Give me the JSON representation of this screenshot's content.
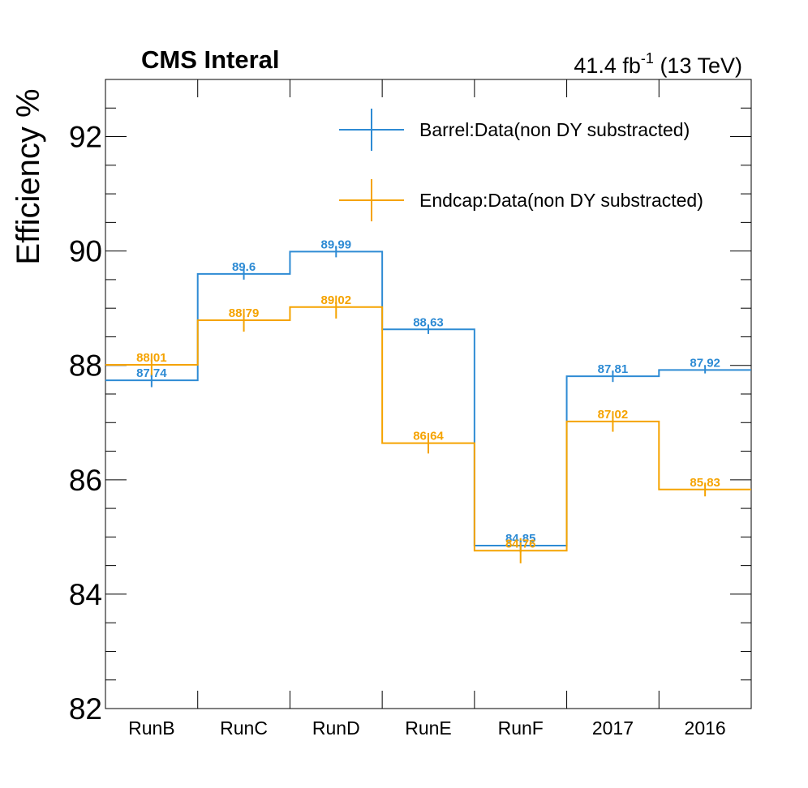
{
  "header": {
    "experiment": "CMS Interal",
    "lumi_value": "41.4 fb",
    "lumi_exp": "-1",
    "energy": " (13 TeV)"
  },
  "chart_data": {
    "type": "line",
    "step": true,
    "ylabel": "Efficiency %",
    "categories": [
      "RunB",
      "RunC",
      "RunD",
      "RunE",
      "RunF",
      "2017",
      "2016"
    ],
    "ylim": [
      82,
      93
    ],
    "yticks": [
      82,
      84,
      86,
      88,
      90,
      92
    ],
    "series": [
      {
        "name": "Barrel:Data(non DY substracted)",
        "color": "#2e8bd4",
        "values": [
          87.74,
          89.6,
          89.99,
          88.63,
          84.85,
          87.81,
          87.92
        ],
        "labels": [
          "87.74",
          "89.6",
          "89.99",
          "88.63",
          "84.85",
          "87.81",
          "87.92"
        ],
        "errors": [
          0.12,
          0.1,
          0.1,
          0.08,
          0.12,
          0.1,
          0.06
        ]
      },
      {
        "name": "Endcap:Data(non DY substracted)",
        "color": "#f5a300",
        "values": [
          88.01,
          88.79,
          89.02,
          86.64,
          84.76,
          87.02,
          85.83
        ],
        "labels": [
          "88.01",
          "88.79",
          "89.02",
          "86.64",
          "84.76",
          "87.02",
          "85.83"
        ],
        "errors": [
          0.2,
          0.2,
          0.2,
          0.18,
          0.22,
          0.18,
          0.12
        ]
      }
    ]
  }
}
